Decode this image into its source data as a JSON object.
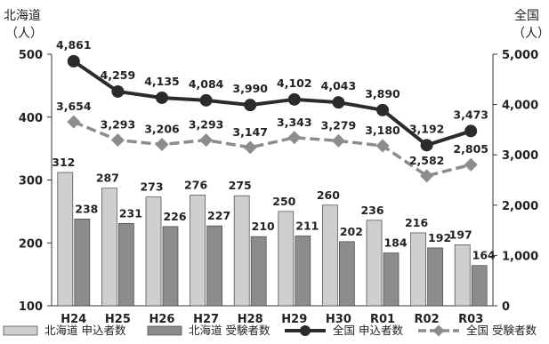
{
  "chart_data": {
    "type": "bar",
    "categories": [
      "H24",
      "H25",
      "H26",
      "H27",
      "H28",
      "H29",
      "H30",
      "R01",
      "R02",
      "R03"
    ],
    "left_axis": {
      "title_line1": "北海道",
      "title_line2": "（人）",
      "ylim": [
        100,
        500
      ],
      "ticks": [
        100,
        200,
        300,
        400,
        500
      ]
    },
    "right_axis": {
      "title_line1": "全国",
      "title_line2": "（人）",
      "ylim": [
        0,
        5000
      ],
      "ticks": [
        "0",
        "1,000",
        "2,000",
        "3,000",
        "4,000",
        "5,000"
      ],
      "tick_values": [
        0,
        1000,
        2000,
        3000,
        4000,
        5000
      ]
    },
    "series": [
      {
        "name": "北海道 申込者数",
        "kind": "bar",
        "axis": "left",
        "color": "#cfcfcf",
        "values": [
          312,
          287,
          273,
          276,
          275,
          250,
          260,
          236,
          216,
          197
        ],
        "labels": [
          "312",
          "287",
          "273",
          "276",
          "275",
          "250",
          "260",
          "236",
          "216",
          "197"
        ]
      },
      {
        "name": "北海道 受験者数",
        "kind": "bar",
        "axis": "left",
        "color": "#8c8c8c",
        "values": [
          238,
          231,
          226,
          227,
          210,
          211,
          202,
          184,
          192,
          164
        ],
        "labels": [
          "238",
          "231",
          "226",
          "227",
          "210",
          "211",
          "202",
          "184",
          "192",
          "164"
        ]
      },
      {
        "name": "全国 申込者数",
        "kind": "line",
        "axis": "right",
        "color": "#2b2b2b",
        "values": [
          4861,
          4259,
          4135,
          4084,
          3990,
          4102,
          4043,
          3890,
          3192,
          3473
        ],
        "labels": [
          "4,861",
          "4,259",
          "4,135",
          "4,084",
          "3,990",
          "4,102",
          "4,043",
          "3,890",
          "3,192",
          "3,473"
        ]
      },
      {
        "name": "全国 受験者数",
        "kind": "line",
        "axis": "right",
        "color": "#8c8c8c",
        "values": [
          3654,
          3293,
          3206,
          3293,
          3147,
          3343,
          3279,
          3180,
          2582,
          2805
        ],
        "labels": [
          "3,654",
          "3,293",
          "3,206",
          "3,293",
          "3,147",
          "3,343",
          "3,279",
          "3,180",
          "2,582",
          "2,805"
        ]
      }
    ],
    "grid": false,
    "legend_position": "bottom"
  }
}
